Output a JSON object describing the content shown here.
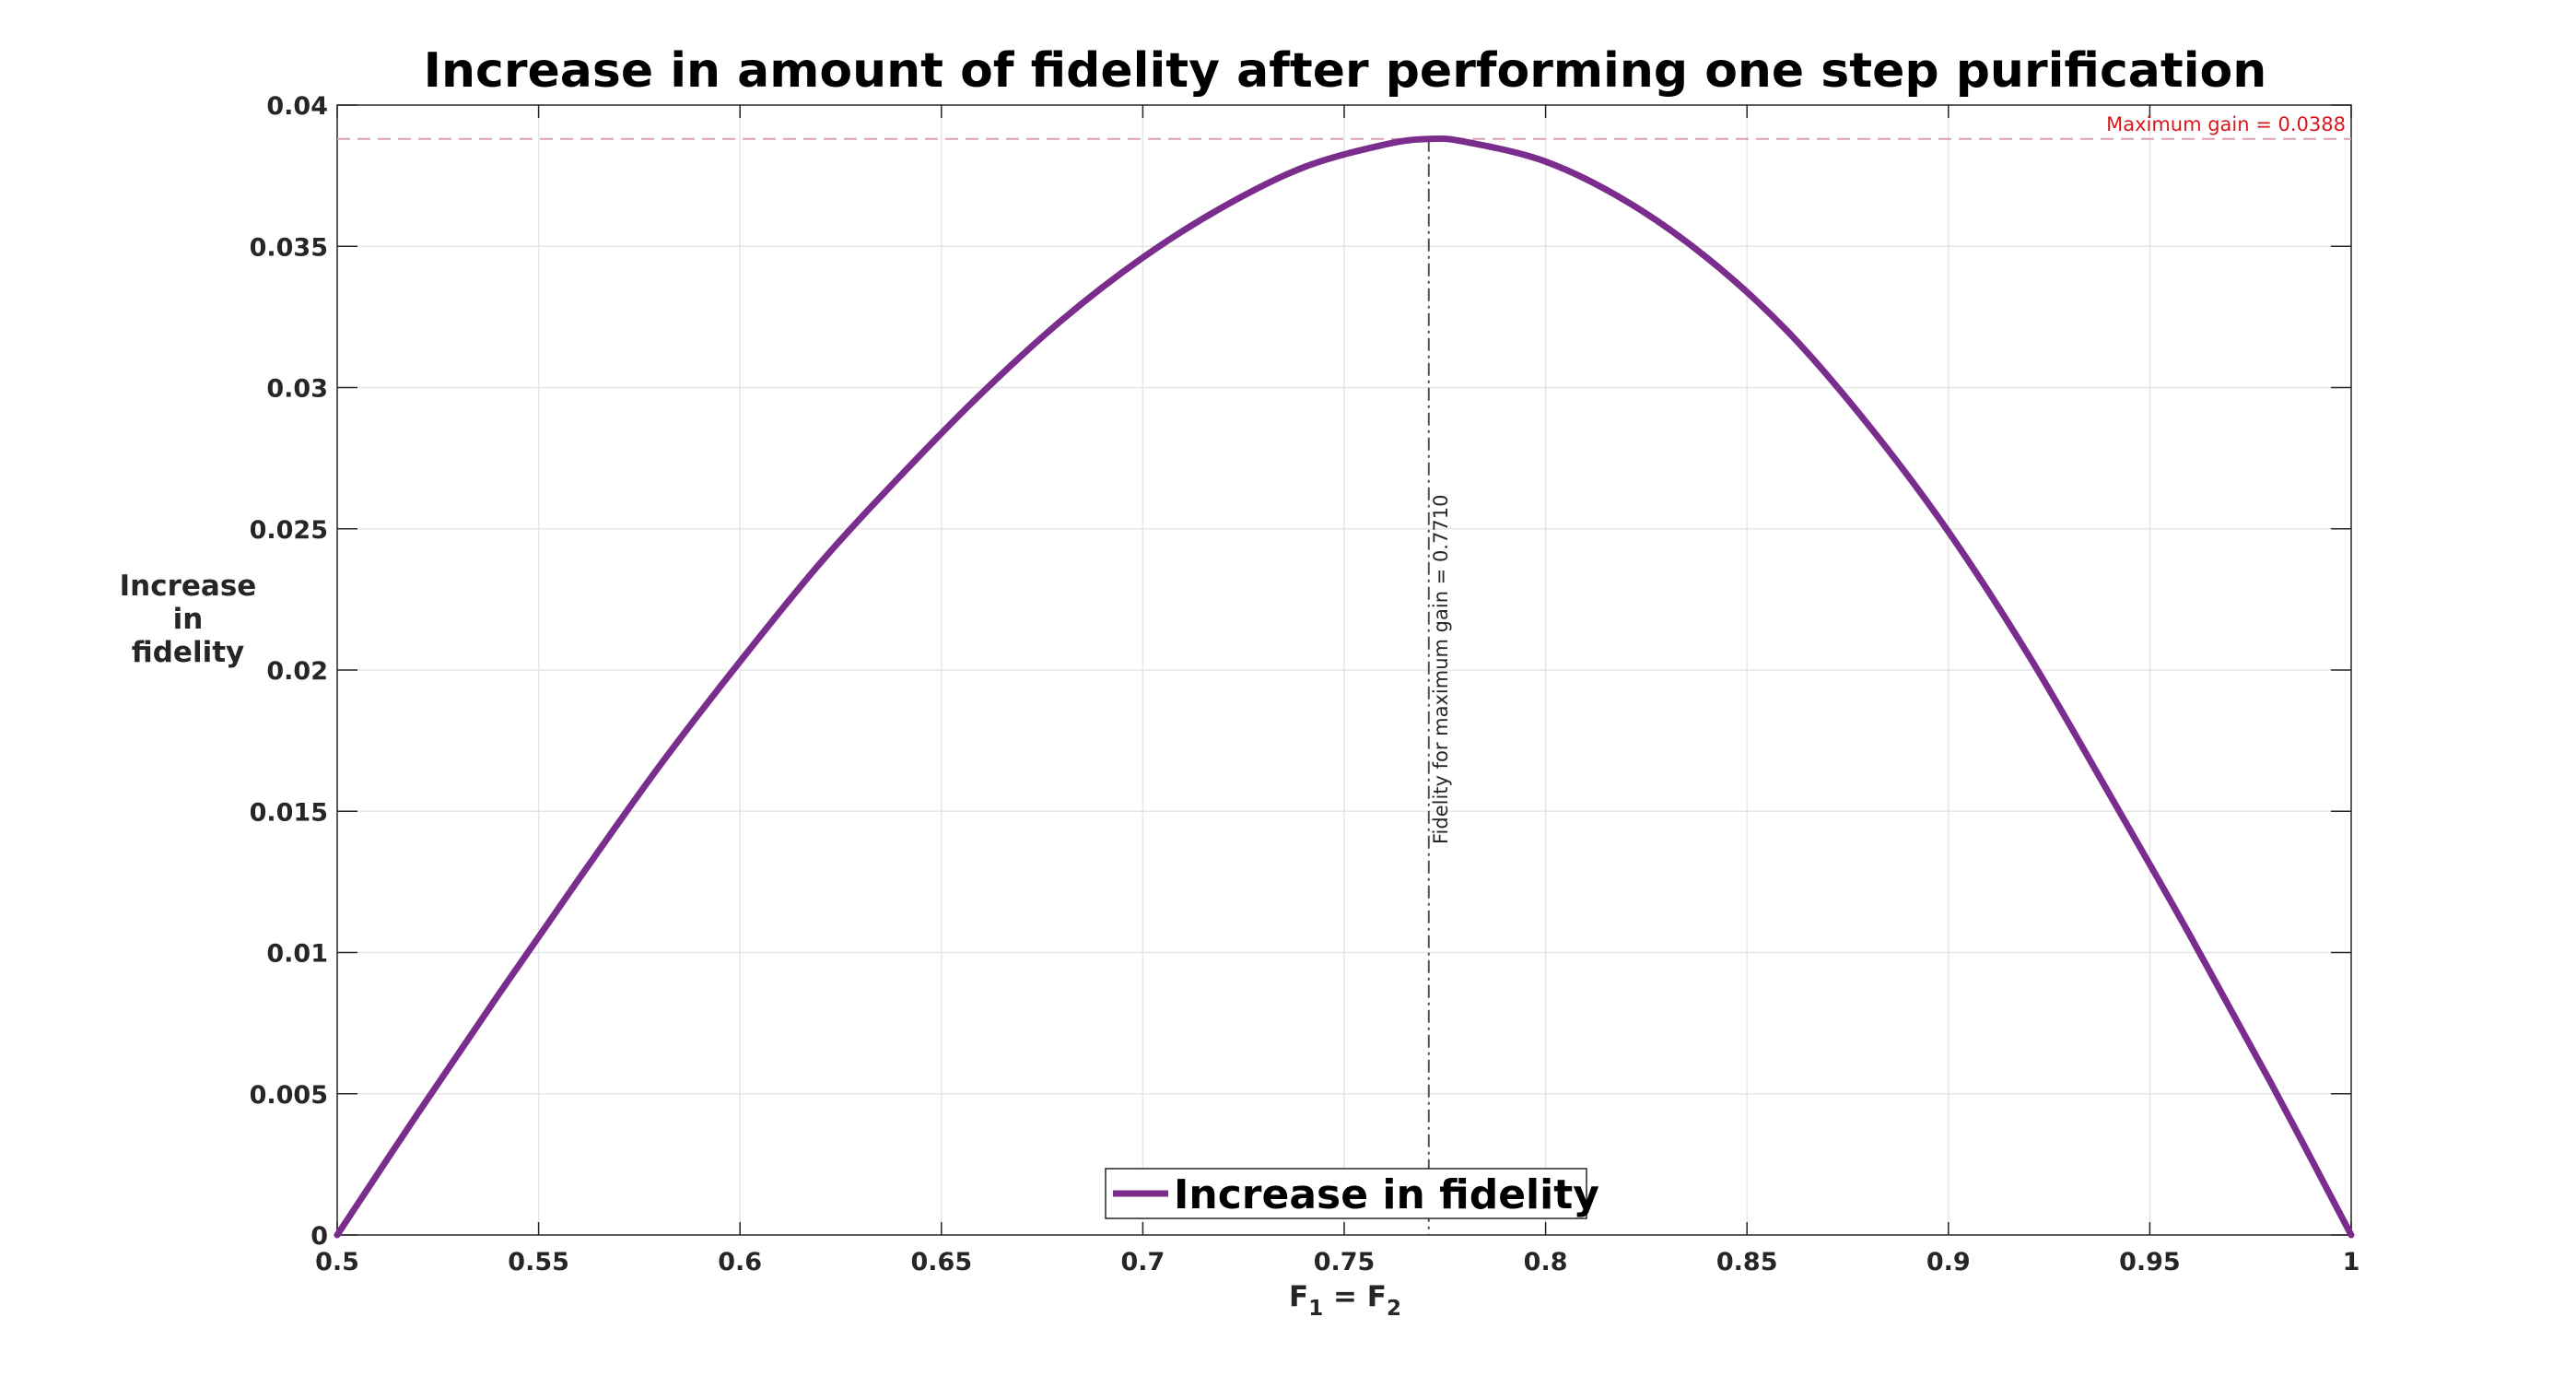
{
  "chart_data": {
    "type": "line",
    "title": "Increase in amount of fidelity after performing one step purification",
    "xlabel": {
      "base": "F",
      "sub1": "1",
      "eq": " = ",
      "sub2": "2"
    },
    "ylabel": [
      "Increase",
      "in",
      "fidelity"
    ],
    "xlim": [
      0.5,
      1
    ],
    "ylim": [
      0,
      0.04
    ],
    "x_ticks": [
      0.5,
      0.55,
      0.6,
      0.65,
      0.7,
      0.75,
      0.8,
      0.85,
      0.9,
      0.95,
      1
    ],
    "x_tick_labels": [
      "0.5",
      "0.55",
      "0.6",
      "0.65",
      "0.7",
      "0.75",
      "0.8",
      "0.85",
      "0.9",
      "0.95",
      "1"
    ],
    "y_ticks": [
      0,
      0.005,
      0.01,
      0.015,
      0.02,
      0.025,
      0.03,
      0.035,
      0.04
    ],
    "y_tick_labels": [
      "0",
      "0.005",
      "0.01",
      "0.015",
      "0.02",
      "0.025",
      "0.03",
      "0.035",
      "0.04"
    ],
    "grid": true,
    "legend": {
      "placement": "bottom-center",
      "entries": [
        "Increase in fidelity"
      ]
    },
    "series": [
      {
        "name": "Increase in fidelity",
        "color": "#7B2D8E",
        "x": [
          0.5,
          0.52,
          0.54,
          0.56,
          0.58,
          0.6,
          0.62,
          0.64,
          0.66,
          0.68,
          0.7,
          0.72,
          0.74,
          0.76,
          0.771,
          0.78,
          0.8,
          0.82,
          0.84,
          0.86,
          0.88,
          0.9,
          0.92,
          0.94,
          0.96,
          0.98,
          1.0
        ],
        "y": [
          0.0,
          0.0043,
          0.0085,
          0.0126,
          0.0166,
          0.0203,
          0.0238,
          0.0269,
          0.0298,
          0.0324,
          0.0346,
          0.0364,
          0.0378,
          0.0386,
          0.0388,
          0.0387,
          0.038,
          0.0366,
          0.0346,
          0.032,
          0.0287,
          0.0249,
          0.0205,
          0.0156,
          0.0106,
          0.0054,
          0.0
        ]
      }
    ],
    "annotations": {
      "max_gain_label": "Maximum gain = 0.0388",
      "max_gain_value": 0.0388,
      "max_gain_color": "#D7191C",
      "max_gain_line_color": "#D9A0AA",
      "fidelity_label": "Fidelity for maximum gain = 0.7710",
      "fidelity_value": 0.771,
      "fidelity_line_color": "#555555"
    }
  }
}
